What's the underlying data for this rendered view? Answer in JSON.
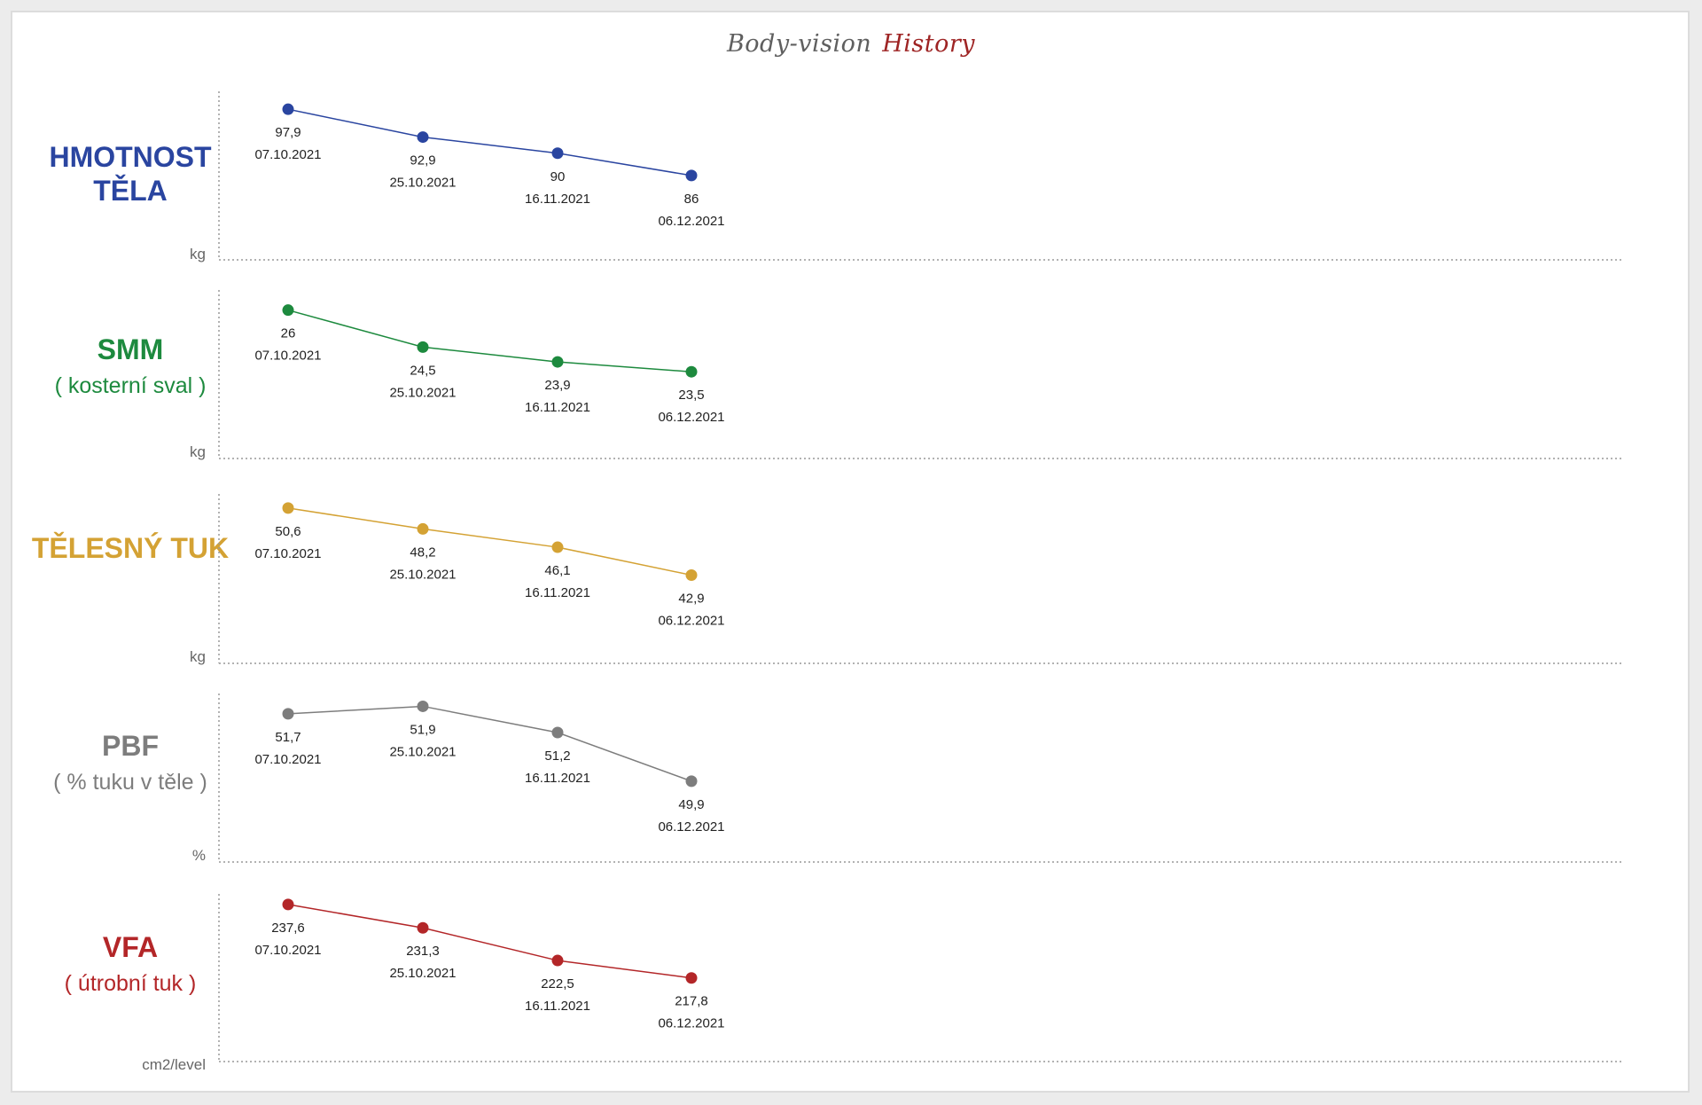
{
  "title": {
    "part1": "Body-vision",
    "part2": "History"
  },
  "colors": {
    "hmotnost": "#2a45a0",
    "smm": "#1d8a3e",
    "tuk": "#d4a234",
    "pbf": "#7d7d7d",
    "vfa": "#b32628"
  },
  "chart_data": [
    {
      "type": "line",
      "title": "HMOTNOST TĚLA",
      "subtitle": "",
      "ylabel": "kg",
      "categories": [
        "07.10.2021",
        "25.10.2021",
        "16.11.2021",
        "06.12.2021"
      ],
      "values": [
        97.9,
        92.9,
        90,
        86
      ],
      "value_labels": [
        "97,9",
        "92,9",
        "90",
        "86"
      ],
      "color_key": "hmotnost",
      "ylim": [
        82,
        100
      ]
    },
    {
      "type": "line",
      "title": "SMM",
      "subtitle": "( kosterní sval )",
      "ylabel": "kg",
      "categories": [
        "07.10.2021",
        "25.10.2021",
        "16.11.2021",
        "06.12.2021"
      ],
      "values": [
        26,
        24.5,
        23.9,
        23.5
      ],
      "value_labels": [
        "26",
        "24,5",
        "23,9",
        "23,5"
      ],
      "color_key": "smm",
      "ylim": [
        22.5,
        26.6
      ]
    },
    {
      "type": "line",
      "title": "TĚLESNÝ TUK",
      "subtitle": "",
      "ylabel": "kg",
      "categories": [
        "07.10.2021",
        "25.10.2021",
        "16.11.2021",
        "06.12.2021"
      ],
      "values": [
        50.6,
        48.2,
        46.1,
        42.9
      ],
      "value_labels": [
        "50,6",
        "48,2",
        "46,1",
        "42,9"
      ],
      "color_key": "tuk",
      "ylim": [
        40,
        51.5
      ]
    },
    {
      "type": "line",
      "title": "PBF",
      "subtitle": "( % tuku v těle )",
      "ylabel": "%",
      "categories": [
        "07.10.2021",
        "25.10.2021",
        "16.11.2021",
        "06.12.2021"
      ],
      "values": [
        51.7,
        51.9,
        51.2,
        49.9
      ],
      "value_labels": [
        "51,7",
        "51,9",
        "51,2",
        "49,9"
      ],
      "color_key": "pbf",
      "ylim": [
        49.4,
        52.1
      ]
    },
    {
      "type": "line",
      "title": "VFA",
      "subtitle": "( útrobní tuk )",
      "ylabel": "cm2/level",
      "categories": [
        "07.10.2021",
        "25.10.2021",
        "16.11.2021",
        "06.12.2021"
      ],
      "values": [
        237.6,
        231.3,
        222.5,
        217.8
      ],
      "value_labels": [
        "237,6",
        "231,3",
        "222,5",
        "217,8"
      ],
      "color_key": "vfa",
      "ylim": [
        212,
        239
      ]
    }
  ]
}
